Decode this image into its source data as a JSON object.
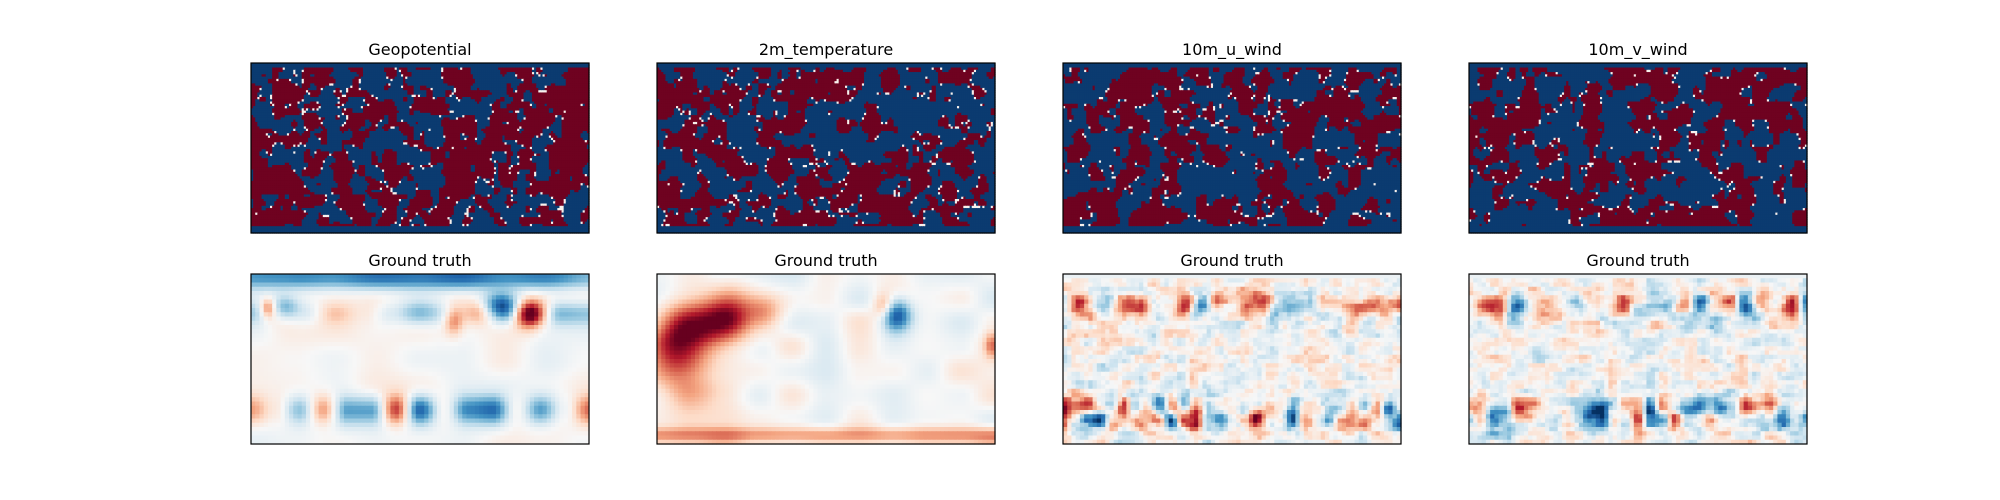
{
  "figure": {
    "background": "#ffffff",
    "colormap": "RdBu_r",
    "colors": {
      "red": "#67001f",
      "blue": "#053061",
      "white": "#f7f7f7",
      "frame": "#000000"
    }
  },
  "chart_data": [
    {
      "type": "heatmap",
      "title": "Geopotential",
      "row": "prediction",
      "pattern": "noise",
      "noise_seed": 11,
      "cells": [
        160,
        75
      ]
    },
    {
      "type": "heatmap",
      "title": "2m_temperature",
      "row": "prediction",
      "pattern": "noise",
      "noise_seed": 23,
      "cells": [
        160,
        75
      ]
    },
    {
      "type": "heatmap",
      "title": "10m_u_wind",
      "row": "prediction",
      "pattern": "noise",
      "noise_seed": 37,
      "cells": [
        160,
        75
      ]
    },
    {
      "type": "heatmap",
      "title": "10m_v_wind",
      "row": "prediction",
      "pattern": "noise",
      "noise_seed": 51,
      "cells": [
        160,
        75
      ]
    },
    {
      "type": "heatmap",
      "title": "Ground truth",
      "row": "ground_truth",
      "variable": "Geopotential",
      "pattern": "geopotential",
      "noise_seed": 101,
      "cells": [
        80,
        40
      ]
    },
    {
      "type": "heatmap",
      "title": "Ground truth",
      "row": "ground_truth",
      "variable": "2m_temperature",
      "pattern": "temperature",
      "noise_seed": 202,
      "cells": [
        80,
        40
      ]
    },
    {
      "type": "heatmap",
      "title": "Ground truth",
      "row": "ground_truth",
      "variable": "10m_u_wind",
      "pattern": "wind",
      "noise_seed": 303,
      "cells": [
        80,
        40
      ]
    },
    {
      "type": "heatmap",
      "title": "Ground truth",
      "row": "ground_truth",
      "variable": "10m_v_wind",
      "pattern": "wind",
      "noise_seed": 404,
      "cells": [
        80,
        40
      ]
    }
  ]
}
